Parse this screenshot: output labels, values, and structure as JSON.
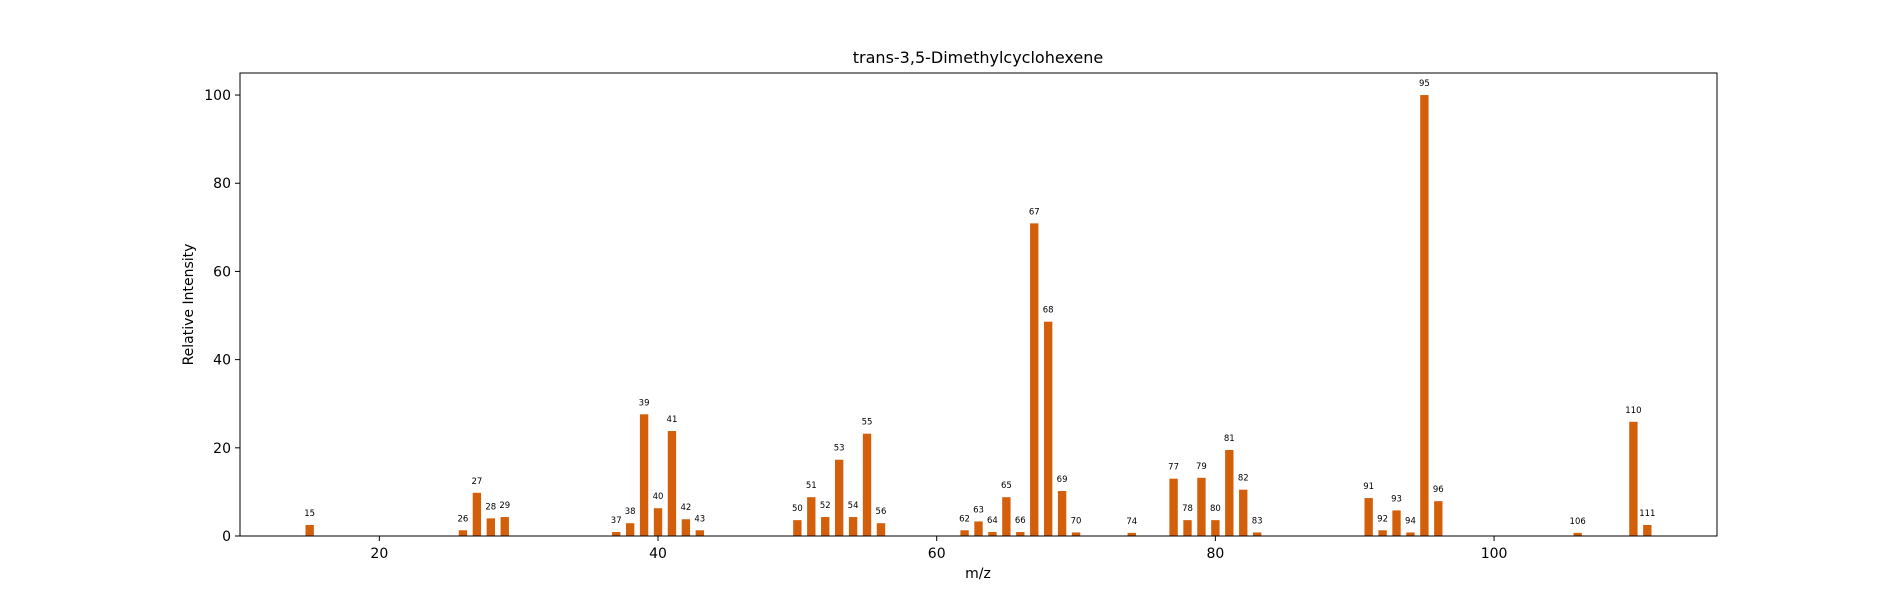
{
  "chart_data": {
    "type": "bar",
    "title": "trans-3,5-Dimethylcyclohexene",
    "xlabel": "m/z",
    "ylabel": "Relative Intensity",
    "xlim": [
      10,
      116
    ],
    "ylim": [
      0,
      105
    ],
    "xticks": [
      20,
      40,
      60,
      80,
      100
    ],
    "yticks": [
      0,
      20,
      40,
      60,
      80,
      100
    ],
    "bar_color": "#d45f0a",
    "grid": false,
    "x": [
      15,
      26,
      27,
      28,
      29,
      37,
      38,
      39,
      40,
      41,
      42,
      43,
      50,
      51,
      52,
      53,
      54,
      55,
      56,
      62,
      63,
      64,
      65,
      66,
      67,
      68,
      69,
      70,
      74,
      77,
      78,
      79,
      80,
      81,
      82,
      83,
      91,
      92,
      93,
      94,
      95,
      96,
      106,
      110,
      111
    ],
    "values": [
      2.5,
      1.3,
      9.8,
      4.0,
      4.3,
      0.9,
      2.9,
      27.6,
      6.3,
      23.8,
      3.8,
      1.3,
      3.6,
      8.8,
      4.3,
      17.3,
      4.3,
      23.2,
      2.9,
      1.3,
      3.3,
      0.9,
      8.8,
      0.9,
      70.9,
      48.6,
      10.2,
      0.8,
      0.7,
      13.0,
      3.6,
      13.2,
      3.6,
      19.5,
      10.5,
      0.8,
      8.6,
      1.3,
      5.8,
      0.8,
      100,
      7.9,
      0.7,
      25.9,
      2.5
    ],
    "labels": [
      "15",
      "26",
      "27",
      "28",
      "29",
      "37",
      "38",
      "39",
      "40",
      "41",
      "42",
      "43",
      "50",
      "51",
      "52",
      "53",
      "54",
      "55",
      "56",
      "62",
      "63",
      "64",
      "65",
      "66",
      "67",
      "68",
      "69",
      "70",
      "74",
      "77",
      "78",
      "79",
      "80",
      "81",
      "82",
      "83",
      "91",
      "92",
      "93",
      "94",
      "95",
      "96",
      "106",
      "110",
      "111"
    ]
  }
}
